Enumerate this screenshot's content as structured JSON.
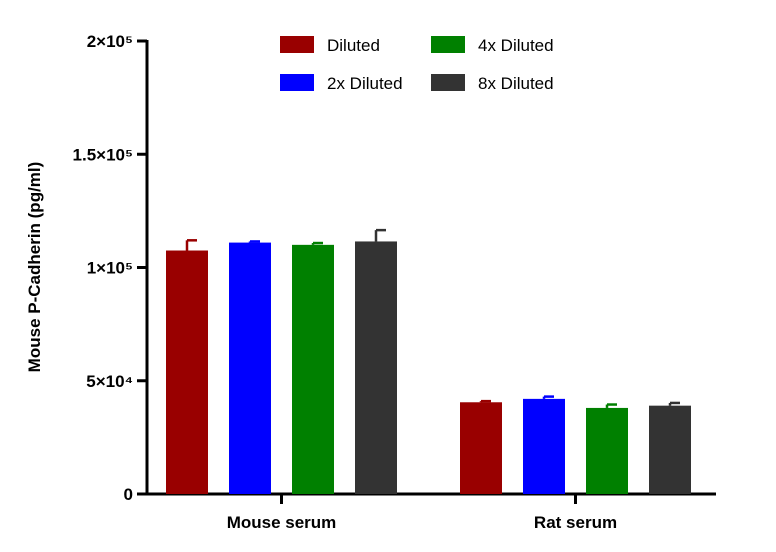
{
  "chart_data": {
    "type": "bar",
    "ylabel": "Mouse P-Cadherin (pg/ml)",
    "xlabel": "",
    "ylim": [
      0,
      200000
    ],
    "y_ticks": [
      {
        "value": 0,
        "label": "0"
      },
      {
        "value": 50000,
        "label": "5×10⁴"
      },
      {
        "value": 100000,
        "label": "1×10⁵"
      },
      {
        "value": 150000,
        "label": "1.5×10⁵"
      },
      {
        "value": 200000,
        "label": "2×10⁵"
      }
    ],
    "categories": [
      "Mouse serum",
      "Rat serum"
    ],
    "series": [
      {
        "name": "Diluted",
        "color": "#990000",
        "values": [
          107500,
          40500
        ],
        "errors": [
          4500,
          500
        ]
      },
      {
        "name": "2x Diluted",
        "color": "#0000ff",
        "values": [
          111000,
          42000
        ],
        "errors": [
          500,
          1000
        ]
      },
      {
        "name": "4x Diluted",
        "color": "#008000",
        "values": [
          110000,
          38000
        ],
        "errors": [
          800,
          1500
        ]
      },
      {
        "name": "8x Diluted",
        "color": "#333333",
        "values": [
          111500,
          39000
        ],
        "errors": [
          5000,
          1200
        ]
      }
    ],
    "legend_position": "top",
    "grid": false
  }
}
